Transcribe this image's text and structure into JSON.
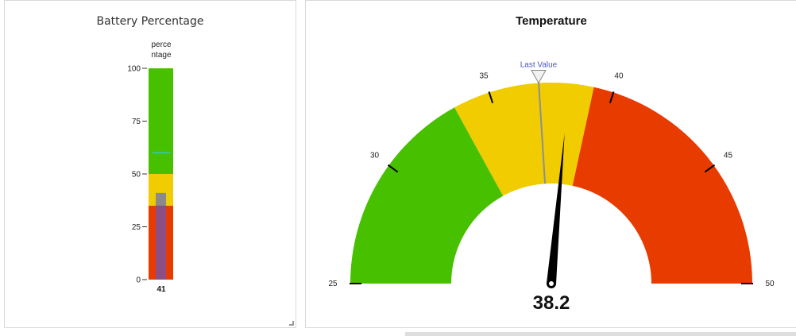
{
  "battery_panel": {
    "title": "Battery Percentage",
    "axis_label_line1": "perce",
    "axis_label_line2": "ntage",
    "ticks": [
      {
        "label": "100",
        "value": 100
      },
      {
        "label": "75",
        "value": 75
      },
      {
        "label": "50",
        "value": 50
      },
      {
        "label": "25",
        "value": 25
      },
      {
        "label": "0",
        "value": 0
      }
    ],
    "value_label": "41"
  },
  "temperature_panel": {
    "title": "Temperature",
    "ticks": [
      "25",
      "30",
      "35",
      "40",
      "45",
      "50"
    ],
    "last_value_label": "Last Value",
    "value_label": "38.2"
  },
  "colors": {
    "green": "#47c000",
    "yellow": "#f0cc00",
    "red": "#e83b00",
    "battery_bar": "#8b4f86",
    "battery_bar_top": "#8a8a8a",
    "target_line": "#36c6a3",
    "marker_line": "#8a8f99",
    "last_value_text": "#4a57c8",
    "needle": "#000000"
  },
  "chart_data": [
    {
      "type": "bar",
      "title": "Battery Percentage",
      "ylabel": "percentage",
      "ylim": [
        0,
        100
      ],
      "value": 41,
      "target": 60,
      "bands": [
        {
          "from": 0,
          "to": 35,
          "color": "#e83b00"
        },
        {
          "from": 35,
          "to": 50,
          "color": "#f0cc00"
        },
        {
          "from": 50,
          "to": 100,
          "color": "#47c000"
        }
      ]
    },
    {
      "type": "gauge",
      "title": "Temperature",
      "range": [
        25,
        50
      ],
      "value": 38.2,
      "last_value": 37,
      "bands": [
        {
          "from": 25,
          "to": 33.5,
          "color": "#47c000"
        },
        {
          "from": 33.5,
          "to": 39.2,
          "color": "#f0cc00"
        },
        {
          "from": 39.2,
          "to": 50,
          "color": "#e83b00"
        }
      ]
    }
  ]
}
